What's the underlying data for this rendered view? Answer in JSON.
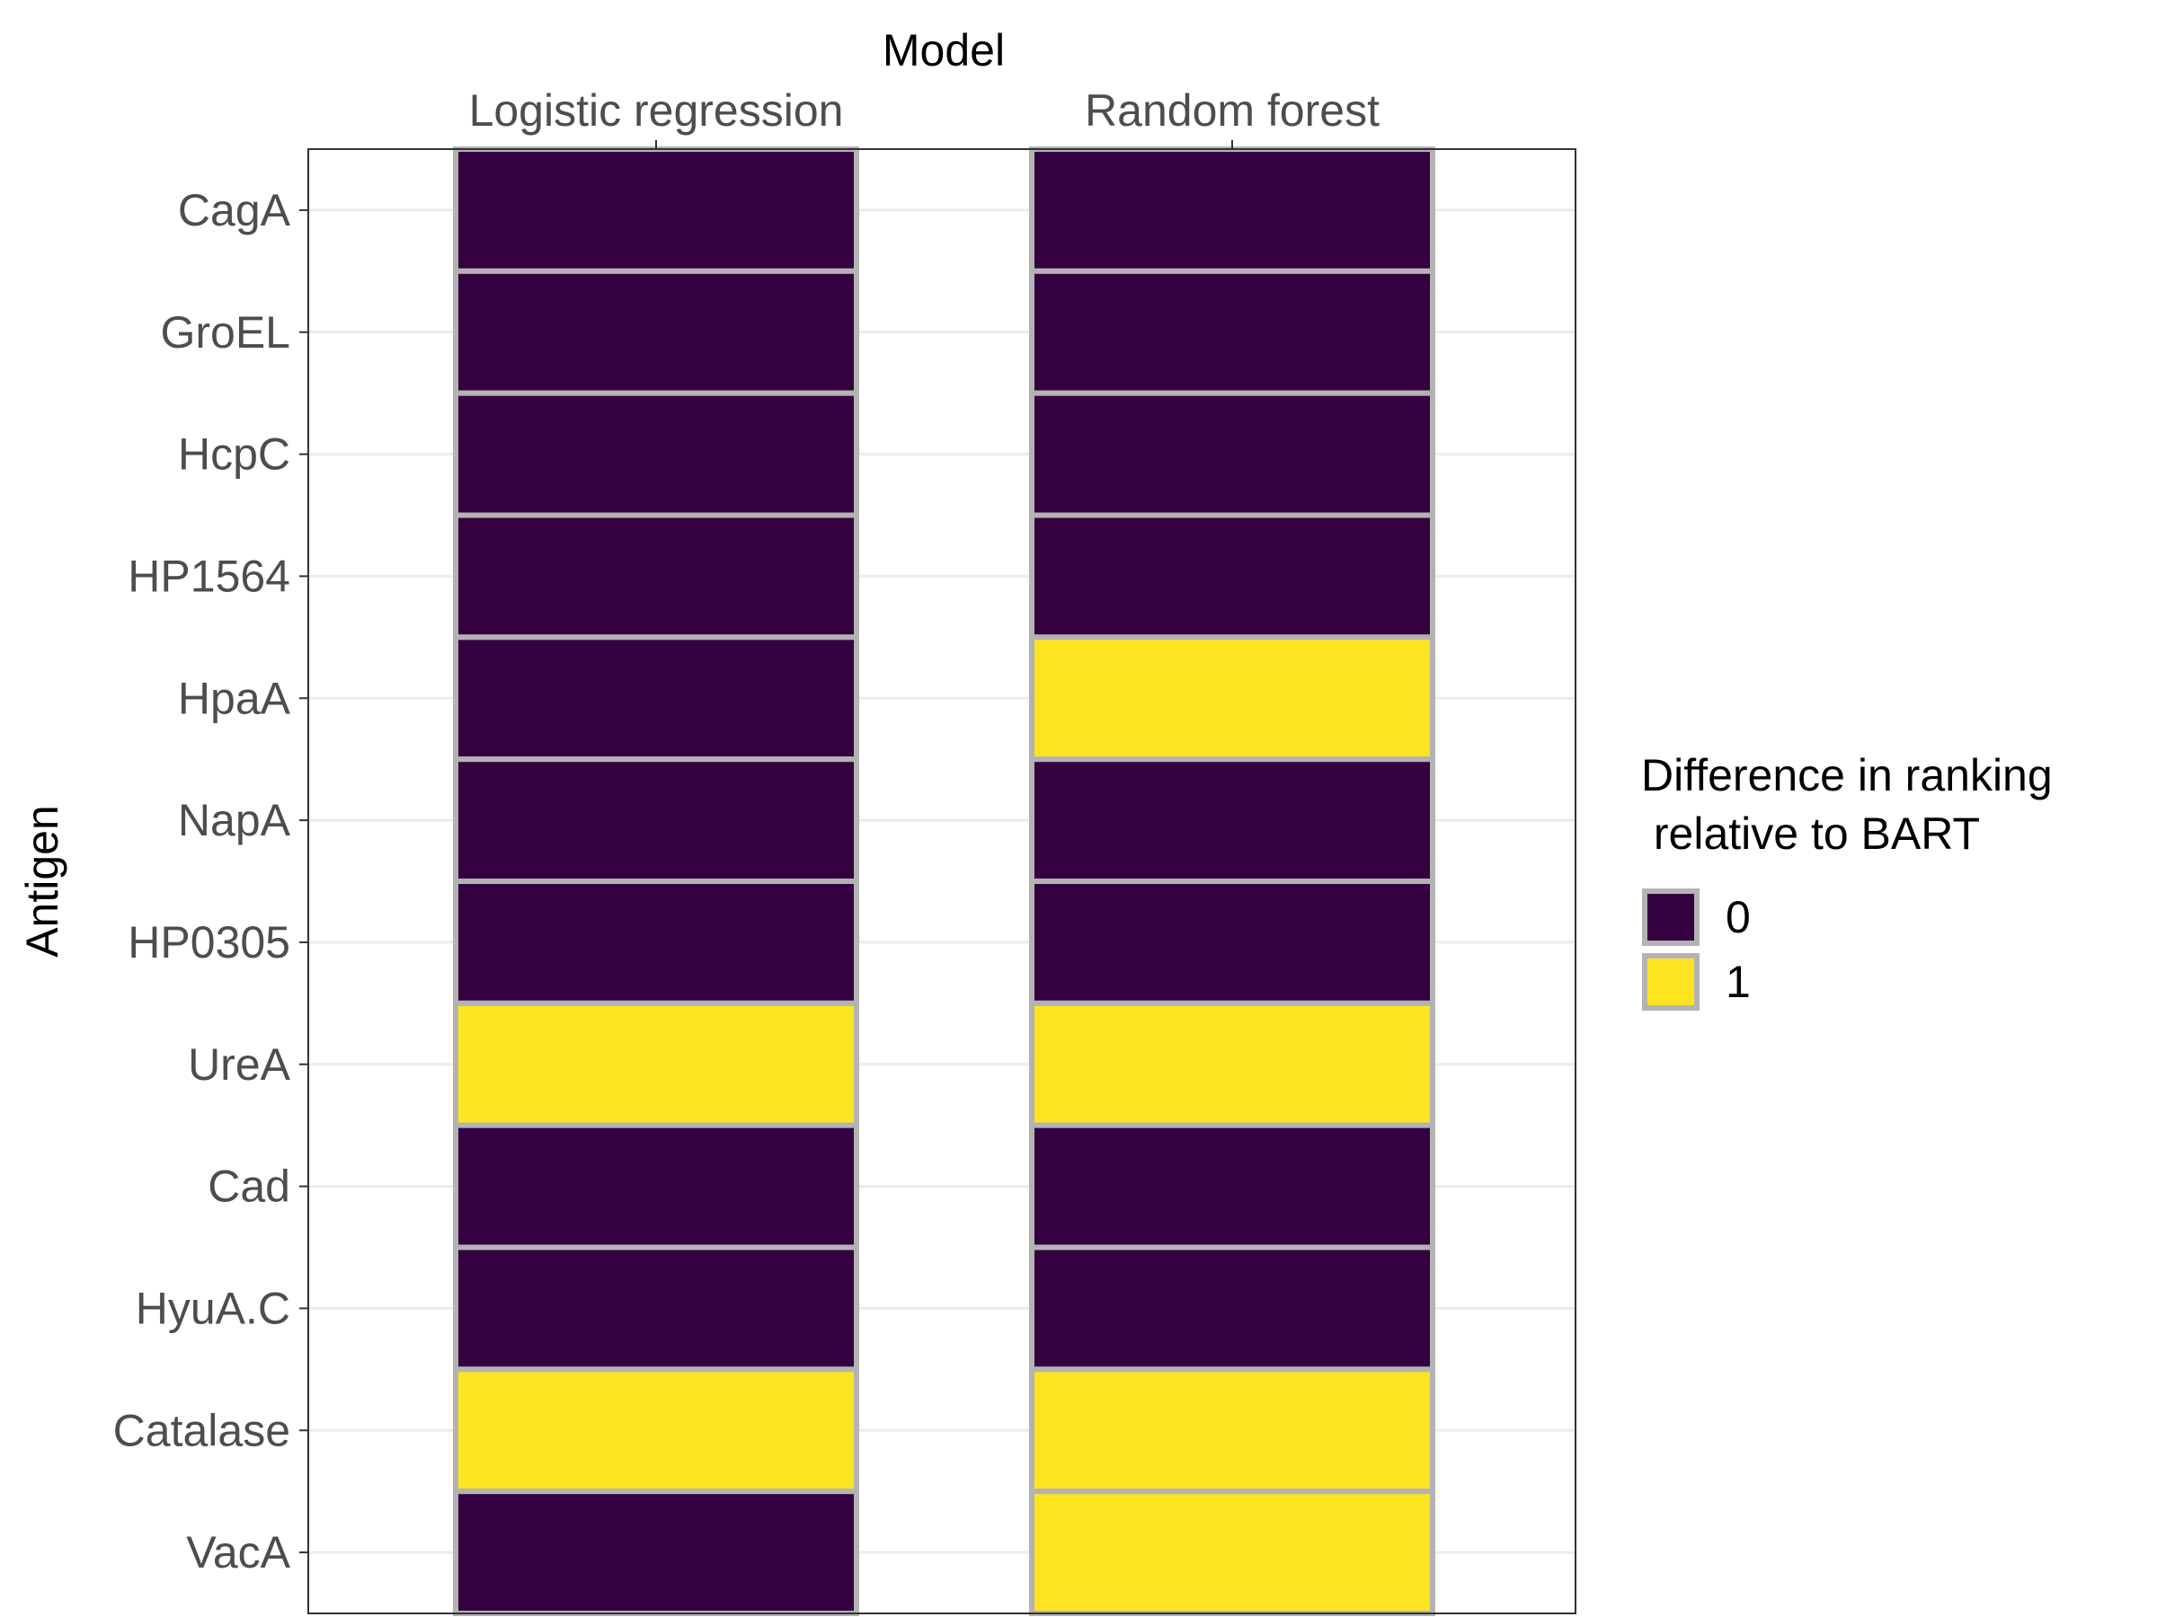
{
  "chart_data": {
    "type": "heatmap",
    "x_title": "Model",
    "y_title": "Antigen",
    "x_position": "top",
    "columns": [
      "Logistic regression",
      "Random forest"
    ],
    "rows": [
      "CagA",
      "GroEL",
      "HcpC",
      "HP1564",
      "HpaA",
      "NapA",
      "HP0305",
      "UreA",
      "Cad",
      "HyuA.C",
      "Catalase",
      "VacA"
    ],
    "values": [
      [
        0,
        0
      ],
      [
        0,
        0
      ],
      [
        0,
        0
      ],
      [
        0,
        0
      ],
      [
        0,
        1
      ],
      [
        0,
        0
      ],
      [
        0,
        0
      ],
      [
        1,
        1
      ],
      [
        0,
        0
      ],
      [
        0,
        0
      ],
      [
        1,
        1
      ],
      [
        0,
        1
      ]
    ],
    "legend": {
      "title_lines": [
        "Difference in ranking",
        " relative to BART"
      ],
      "placement": "right",
      "entries": [
        {
          "label": "0",
          "value": 0,
          "color": "#35003f"
        },
        {
          "label": "1",
          "value": 1,
          "color": "#fde421"
        }
      ]
    },
    "tile_border_color": "#b3b3b3",
    "grid": true,
    "grid_color": "#ebebeb",
    "panel_border_color": "#333333"
  }
}
